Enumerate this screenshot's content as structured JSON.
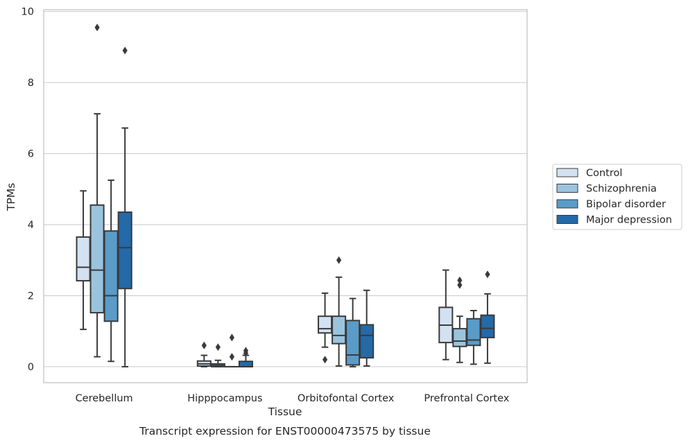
{
  "chart_data": {
    "type": "boxplot",
    "title": "",
    "caption": "Transcript expression for ENST00000473575 by tissue",
    "xlabel": "Tissue",
    "ylabel": "TPMs",
    "ylim": [
      -0.45,
      10.05
    ],
    "yticks": [
      0,
      2,
      4,
      6,
      8,
      10
    ],
    "grid": "horizontal",
    "legend_position": "right",
    "categories": [
      "Cerebellum",
      "Hipppocampus",
      "Orbitofontal Cortex",
      "Prefrontal Cortex"
    ],
    "series": [
      {
        "name": "Control",
        "color": "#d3e2f2",
        "boxes": [
          {
            "whislo": 1.05,
            "q1": 2.42,
            "med": 2.8,
            "q3": 3.65,
            "whishi": 4.95,
            "fliers": []
          },
          {
            "whislo": 0.0,
            "q1": 0.02,
            "med": 0.08,
            "q3": 0.16,
            "whishi": 0.32,
            "fliers": [
              0.6
            ]
          },
          {
            "whislo": 0.55,
            "q1": 0.95,
            "med": 1.07,
            "q3": 1.42,
            "whishi": 2.07,
            "fliers": [
              0.2
            ]
          },
          {
            "whislo": 0.2,
            "q1": 0.68,
            "med": 1.17,
            "q3": 1.67,
            "whishi": 2.72,
            "fliers": []
          }
        ]
      },
      {
        "name": "Schizophrenia",
        "color": "#9ac4dd",
        "boxes": [
          {
            "whislo": 0.28,
            "q1": 1.52,
            "med": 2.72,
            "q3": 4.55,
            "whishi": 7.12,
            "fliers": [
              9.55
            ]
          },
          {
            "whislo": 0.0,
            "q1": 0.0,
            "med": 0.04,
            "q3": 0.08,
            "whishi": 0.18,
            "fliers": [
              0.55
            ]
          },
          {
            "whislo": 0.02,
            "q1": 0.65,
            "med": 0.88,
            "q3": 1.42,
            "whishi": 2.52,
            "fliers": [
              3.0
            ]
          },
          {
            "whislo": 0.12,
            "q1": 0.57,
            "med": 0.72,
            "q3": 1.07,
            "whishi": 1.42,
            "fliers": [
              2.3,
              2.43
            ]
          }
        ]
      },
      {
        "name": "Bipolar disorder",
        "color": "#5a9bc8",
        "boxes": [
          {
            "whislo": 0.15,
            "q1": 1.28,
            "med": 2.0,
            "q3": 3.82,
            "whishi": 5.25,
            "fliers": []
          },
          {
            "whislo": 0.0,
            "q1": 0.0,
            "med": 0.0,
            "q3": 0.0,
            "whishi": 0.0,
            "fliers": [
              0.28,
              0.82
            ]
          },
          {
            "whislo": 0.0,
            "q1": 0.05,
            "med": 0.33,
            "q3": 1.3,
            "whishi": 1.92,
            "fliers": []
          },
          {
            "whislo": 0.07,
            "q1": 0.6,
            "med": 0.75,
            "q3": 1.35,
            "whishi": 1.58,
            "fliers": []
          }
        ]
      },
      {
        "name": "Major depression",
        "color": "#2469a8",
        "boxes": [
          {
            "whislo": 0.0,
            "q1": 2.2,
            "med": 3.35,
            "q3": 4.35,
            "whishi": 6.72,
            "fliers": [
              8.9
            ]
          },
          {
            "whislo": 0.0,
            "q1": 0.0,
            "med": 0.0,
            "q3": 0.15,
            "whishi": 0.32,
            "fliers": [
              0.38,
              0.45
            ]
          },
          {
            "whislo": 0.02,
            "q1": 0.25,
            "med": 0.88,
            "q3": 1.18,
            "whishi": 2.15,
            "fliers": []
          },
          {
            "whislo": 0.1,
            "q1": 0.82,
            "med": 1.08,
            "q3": 1.45,
            "whishi": 2.05,
            "fliers": [
              2.6
            ]
          }
        ]
      }
    ]
  }
}
